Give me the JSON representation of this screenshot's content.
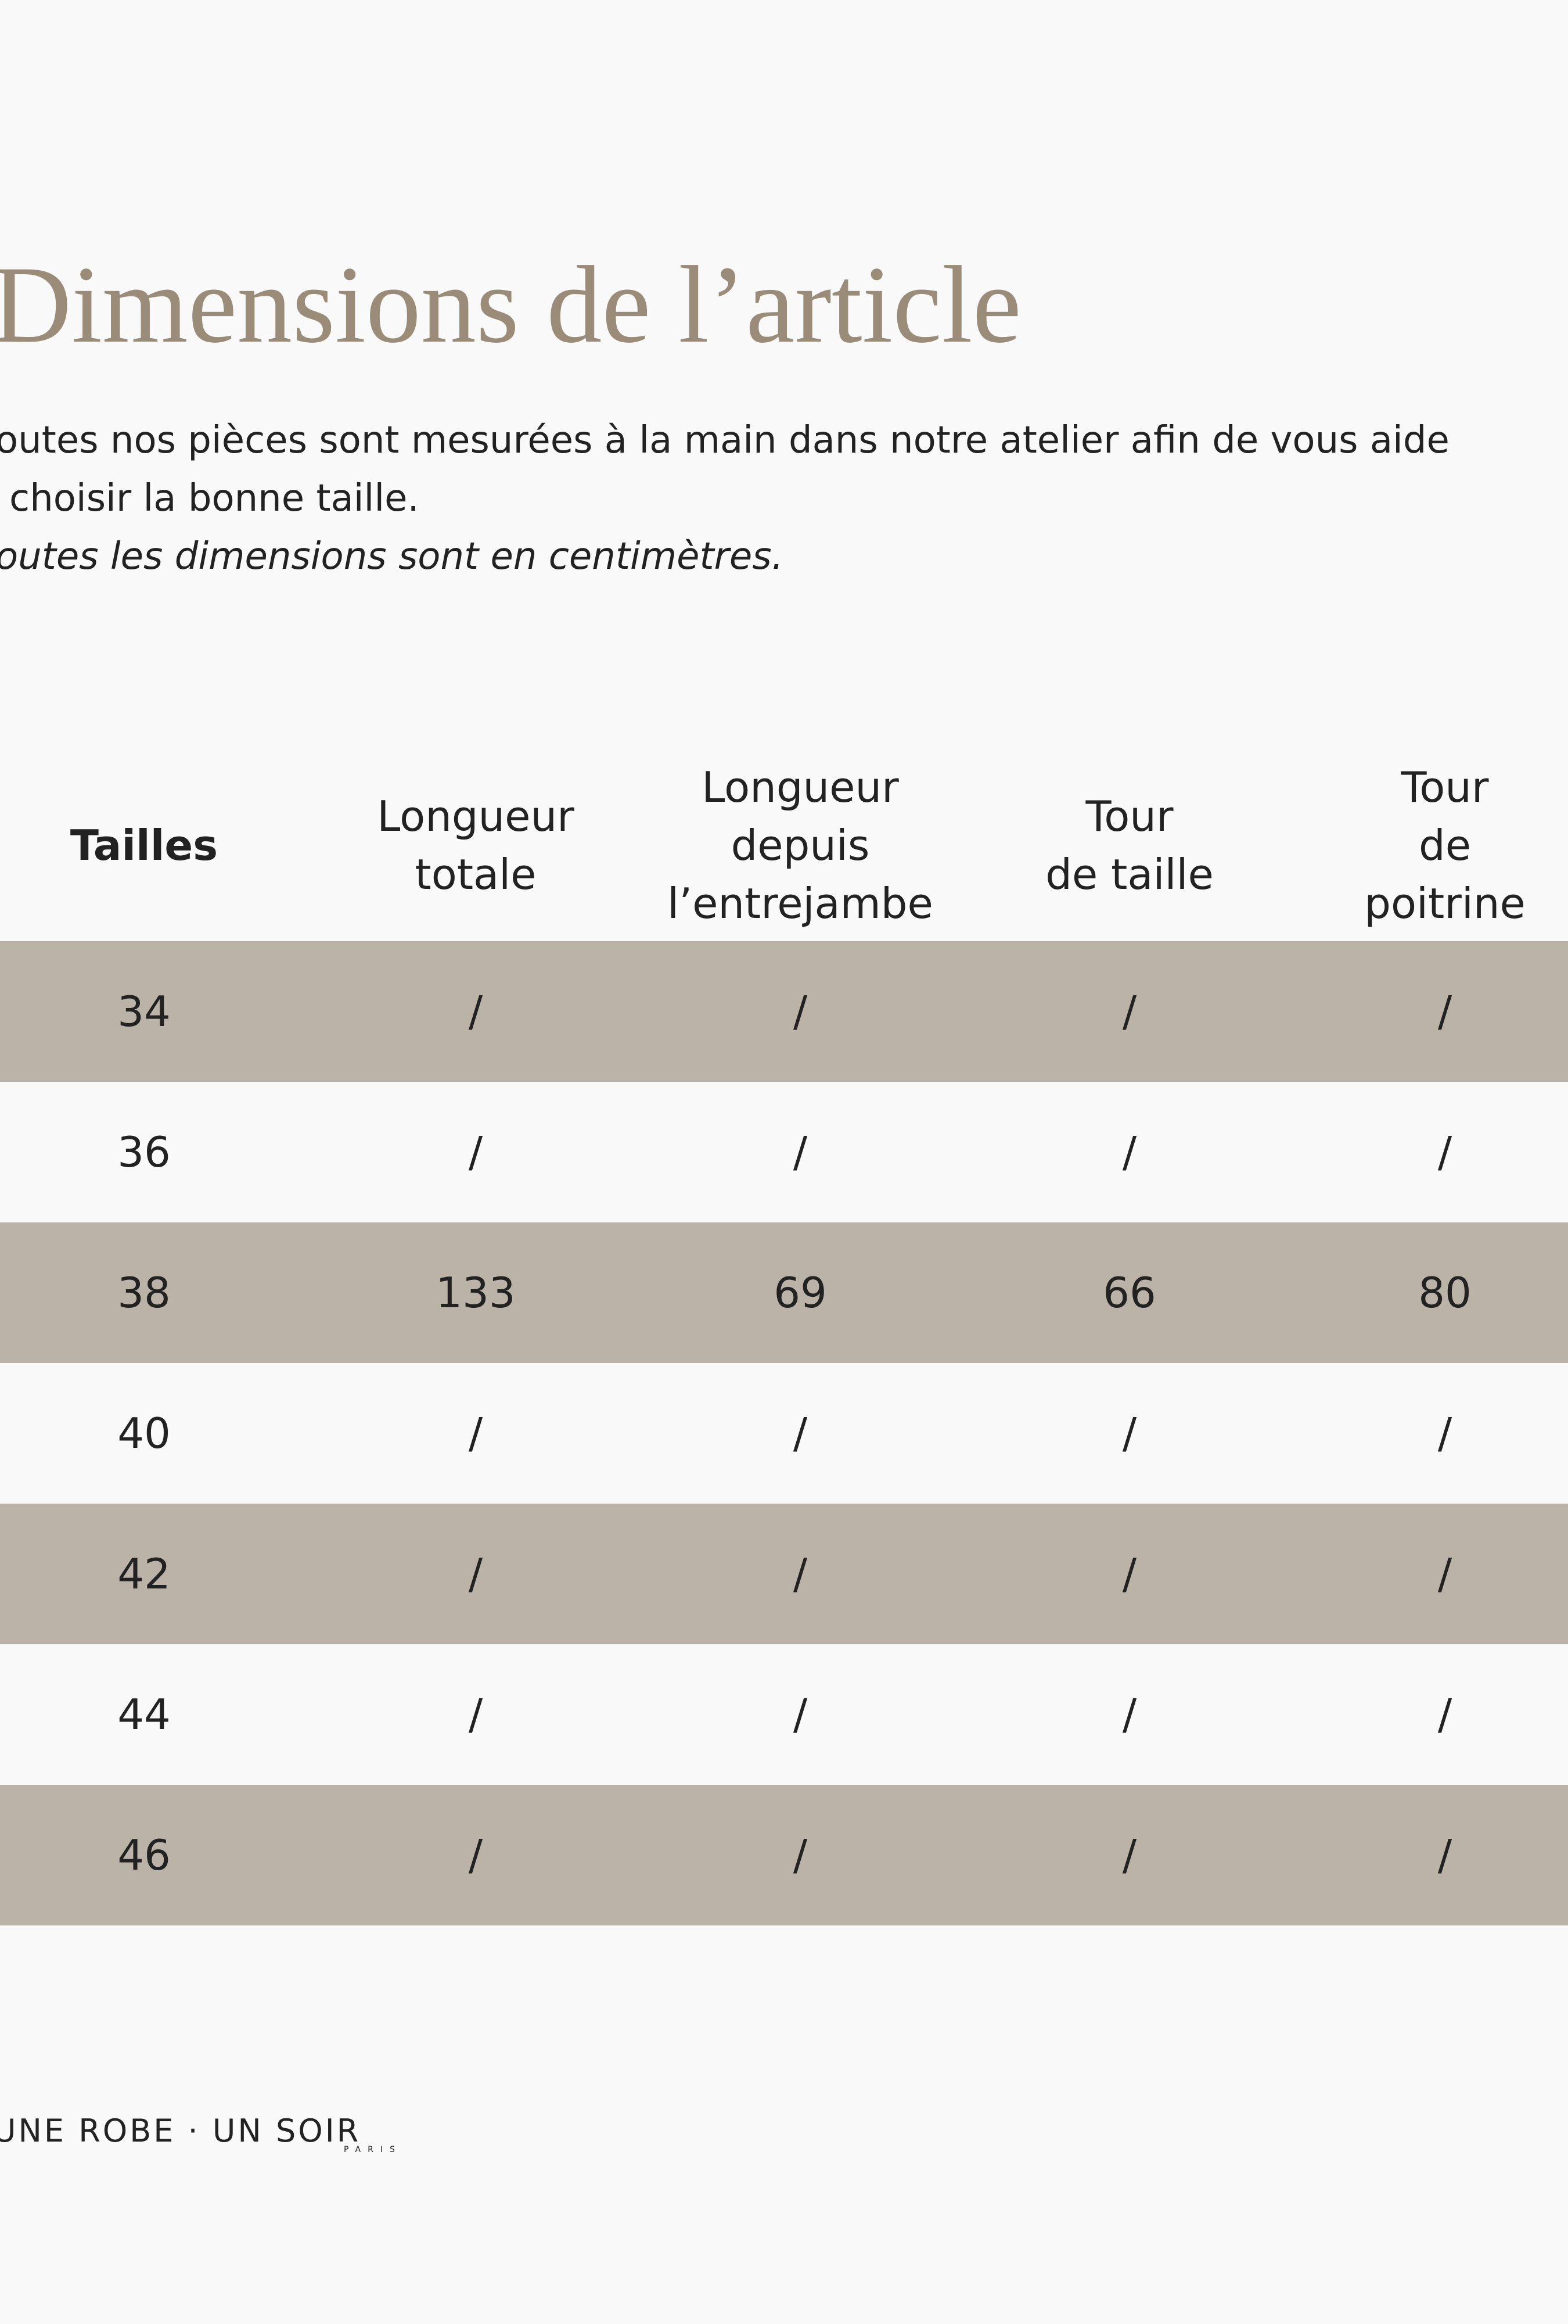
{
  "header": {
    "title": "Dimensions de l’article"
  },
  "intro": [
    "outes nos pièces sont mesurées à la main dans notre atelier afin de vous aide",
    "choisir la bonne taille.",
    "outes les dimensions sont en centimètres."
  ],
  "table": {
    "columns": [
      [
        "Tailles"
      ],
      [
        "Longueur",
        "totale"
      ],
      [
        "Longueur",
        "depuis",
        "l’entrejambe"
      ],
      [
        "Tour",
        "de taille"
      ],
      [
        "Tour",
        "de poitrine"
      ]
    ],
    "rows": [
      [
        "34",
        "/",
        "/",
        "/",
        "/"
      ],
      [
        "36",
        "/",
        "/",
        "/",
        "/"
      ],
      [
        "38",
        "133",
        "69",
        "66",
        "80"
      ],
      [
        "40",
        "/",
        "/",
        "/",
        "/"
      ],
      [
        "42",
        "/",
        "/",
        "/",
        "/"
      ],
      [
        "44",
        "/",
        "/",
        "/",
        "/"
      ],
      [
        "46",
        "/",
        "/",
        "/",
        "/"
      ]
    ]
  },
  "footer": {
    "logo": "UNE ROBE · UN SOIR",
    "city": "PARIS"
  }
}
